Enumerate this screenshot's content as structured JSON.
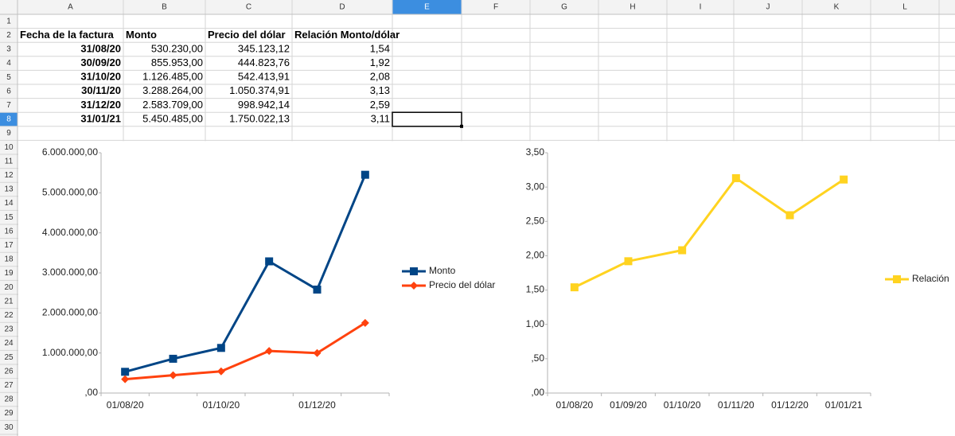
{
  "sheet": {
    "columns": [
      "A",
      "B",
      "C",
      "D",
      "E",
      "F",
      "G",
      "H",
      "I",
      "J",
      "K",
      "L"
    ],
    "rows": [
      1,
      2,
      3,
      4,
      5,
      6,
      7,
      8,
      9,
      10,
      11,
      12,
      13,
      14,
      15,
      16,
      17,
      18,
      19,
      20,
      21,
      22,
      23,
      24,
      25,
      26,
      27,
      28,
      29,
      30
    ],
    "header": [
      "Fecha de la factura",
      "Monto",
      "Precio del dólar",
      "Relación Monto/dólar"
    ],
    "cells": [
      [
        "31/08/20",
        "530.230,00",
        "345.123,12",
        "1,54"
      ],
      [
        "30/09/20",
        "855.953,00",
        "444.823,76",
        "1,92"
      ],
      [
        "31/10/20",
        "1.126.485,00",
        "542.413,91",
        "2,08"
      ],
      [
        "30/11/20",
        "3.288.264,00",
        "1.050.374,91",
        "3,13"
      ],
      [
        "31/12/20",
        "2.583.709,00",
        "998.942,14",
        "2,59"
      ],
      [
        "31/01/21",
        "5.450.485,00",
        "1.750.022,13",
        "3,11"
      ]
    ]
  },
  "chart_data": [
    {
      "type": "line",
      "categories": [
        "01/08/20",
        null,
        "01/10/20",
        null,
        "01/12/20",
        null
      ],
      "series": [
        {
          "name": "Monto",
          "color": "#004586",
          "marker": "square",
          "values": [
            530230,
            855953,
            1126485,
            3288264,
            2583709,
            5450485
          ]
        },
        {
          "name": "Precio del dólar",
          "color": "#ff420e",
          "marker": "diamond",
          "values": [
            345123.12,
            444823.76,
            542413.91,
            1050374.91,
            998942.14,
            1750022.13
          ]
        }
      ],
      "ylim": [
        0,
        6000000
      ],
      "yticks": [
        {
          "value": 0,
          "label": ",00"
        },
        {
          "value": 1000000,
          "label": "1.000.000,00"
        },
        {
          "value": 2000000,
          "label": "2.000.000,00"
        },
        {
          "value": 3000000,
          "label": "3.000.000,00"
        },
        {
          "value": 4000000,
          "label": "4.000.000,00"
        },
        {
          "value": 5000000,
          "label": "5.000.000,00"
        },
        {
          "value": 6000000,
          "label": "6.000.000,00"
        }
      ],
      "grid": false,
      "legend": "right"
    },
    {
      "type": "line",
      "categories": [
        "01/08/20",
        "01/09/20",
        "01/10/20",
        "01/11/20",
        "01/12/20",
        "01/01/21"
      ],
      "series": [
        {
          "name": "Relación",
          "color": "#ffd320",
          "marker": "square",
          "values": [
            1.54,
            1.92,
            2.08,
            3.13,
            2.59,
            3.11
          ]
        }
      ],
      "ylim": [
        0,
        3.5
      ],
      "yticks": [
        {
          "value": 0,
          "label": ",00"
        },
        {
          "value": 0.5,
          "label": ",50"
        },
        {
          "value": 1,
          "label": "1,00"
        },
        {
          "value": 1.5,
          "label": "1,50"
        },
        {
          "value": 2,
          "label": "2,00"
        },
        {
          "value": 2.5,
          "label": "2,50"
        },
        {
          "value": 3,
          "label": "3,00"
        },
        {
          "value": 3.5,
          "label": "3,50"
        }
      ],
      "grid": false,
      "legend": "right"
    }
  ]
}
